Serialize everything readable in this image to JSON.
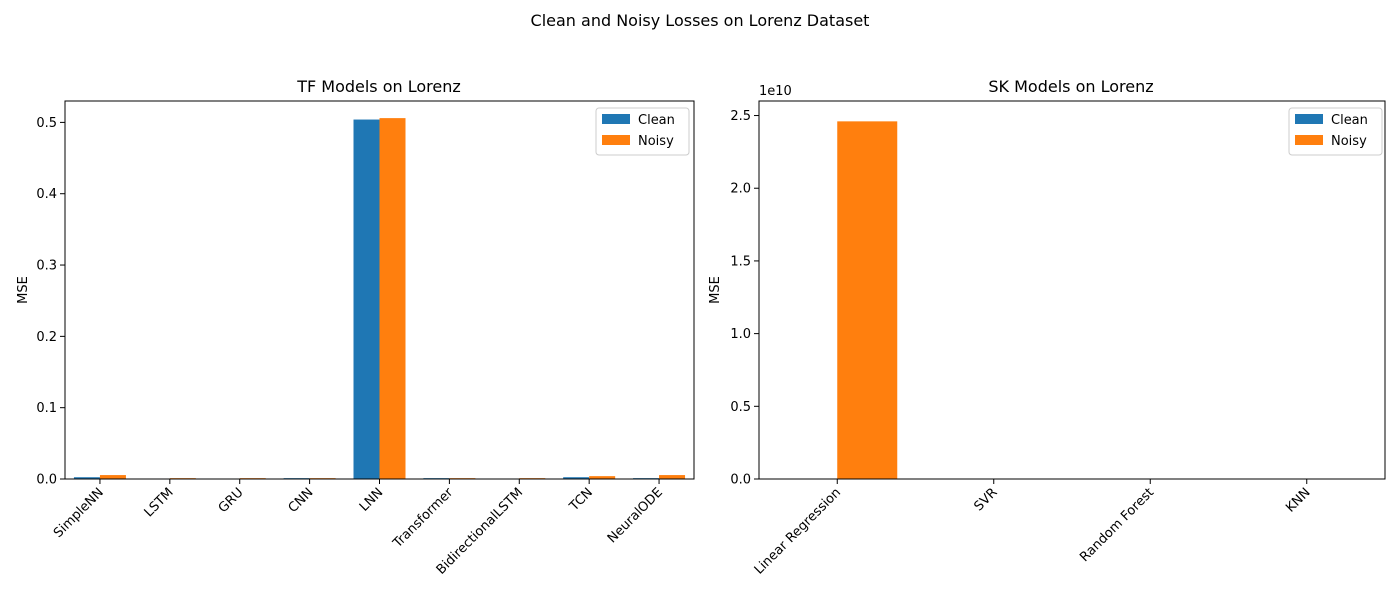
{
  "suptitle": "Clean and Noisy Losses on Lorenz Dataset",
  "colors": {
    "clean": "#1f77b4",
    "noisy": "#ff7f0e"
  },
  "chart_data": [
    {
      "type": "bar",
      "title": "TF Models on Lorenz",
      "xlabel": "",
      "ylabel": "MSE",
      "ylim": [
        0,
        0.53
      ],
      "yticks": [
        0.0,
        0.1,
        0.2,
        0.3,
        0.4,
        0.5
      ],
      "ytick_labels": [
        "0.0",
        "0.1",
        "0.2",
        "0.3",
        "0.4",
        "0.5"
      ],
      "offset_label": "",
      "legend": "top-right",
      "grid": false,
      "categories": [
        "SimpleNN",
        "LSTM",
        "GRU",
        "CNN",
        "LNN",
        "Transformer",
        "BidirectionalLSTM",
        "TCN",
        "NeuralODE"
      ],
      "series": [
        {
          "name": "Clean",
          "values": [
            0.0025,
            0.0005,
            0.0004,
            0.0012,
            0.504,
            0.0012,
            0.0005,
            0.0025,
            0.0012
          ]
        },
        {
          "name": "Noisy",
          "values": [
            0.0055,
            0.0012,
            0.0012,
            0.0012,
            0.506,
            0.0012,
            0.0012,
            0.004,
            0.0055
          ]
        }
      ]
    },
    {
      "type": "bar",
      "title": "SK Models on Lorenz",
      "xlabel": "",
      "ylabel": "MSE",
      "ylim": [
        0,
        26000000000.0
      ],
      "yticks": [
        0,
        5000000000.0,
        10000000000.0,
        15000000000.0,
        20000000000.0,
        25000000000.0
      ],
      "ytick_labels": [
        "0.0",
        "0.5",
        "1.0",
        "1.5",
        "2.0",
        "2.5"
      ],
      "offset_label": "1e10",
      "legend": "top-right",
      "grid": false,
      "categories": [
        "Linear Regression",
        "SVR",
        "Random Forest",
        "KNN"
      ],
      "series": [
        {
          "name": "Clean",
          "values": [
            0.01,
            0.03,
            0.0005,
            0.004
          ]
        },
        {
          "name": "Noisy",
          "values": [
            24600000000.0,
            0.03,
            0.0005,
            0.004
          ]
        }
      ]
    }
  ]
}
